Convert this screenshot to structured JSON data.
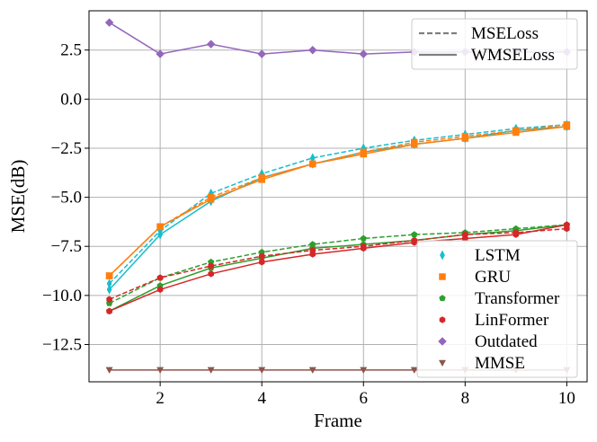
{
  "chart_data": {
    "type": "line",
    "title": "",
    "xlabel": "Frame",
    "ylabel": "MSE(dB)",
    "x": [
      1,
      2,
      3,
      4,
      5,
      6,
      7,
      8,
      9,
      10
    ],
    "xlim": [
      0.6,
      10.4
    ],
    "ylim": [
      -14.4,
      4.5
    ],
    "xticks": [
      2,
      4,
      6,
      8,
      10
    ],
    "xtick_labels": [
      "2",
      "4",
      "6",
      "8",
      "10"
    ],
    "yticks": [
      2.5,
      0.0,
      -2.5,
      -5.0,
      -7.5,
      -10.0,
      -12.5
    ],
    "ytick_labels": [
      "2.5",
      "0.0",
      "−2.5",
      "−5.0",
      "−7.5",
      "−10.0",
      "−12.5"
    ],
    "grid": true,
    "loss_legend": {
      "placement": "top-right",
      "entries": [
        {
          "label": "MSELoss",
          "style": "dashed",
          "color": "#7f7f7f"
        },
        {
          "label": "WMSELoss",
          "style": "solid",
          "color": "#7f7f7f"
        }
      ]
    },
    "model_legend": {
      "placement": "lower-right",
      "entries": [
        {
          "label": "LSTM",
          "marker": "thin_diamond",
          "color": "#17becf"
        },
        {
          "label": "GRU",
          "marker": "square",
          "color": "#ff7f0e"
        },
        {
          "label": "Transformer",
          "marker": "pentagon",
          "color": "#2ca02c"
        },
        {
          "label": "LinFormer",
          "marker": "hexagon",
          "color": "#d62728"
        },
        {
          "label": "Outdated",
          "marker": "diamond",
          "color": "#9467bd"
        },
        {
          "label": "MMSE",
          "marker": "triangle_down",
          "color": "#8c564b"
        }
      ]
    },
    "series": [
      {
        "name": "LSTM",
        "loss": "MSELoss",
        "color": "#17becf",
        "marker": "thin_diamond",
        "values": [
          -9.4,
          -6.7,
          -4.8,
          -3.8,
          -3.0,
          -2.5,
          -2.1,
          -1.8,
          -1.5,
          -1.3
        ]
      },
      {
        "name": "LSTM",
        "loss": "WMSELoss",
        "color": "#17becf",
        "marker": "thin_diamond",
        "values": [
          -9.7,
          -6.9,
          -5.2,
          -4.0,
          -3.3,
          -2.7,
          -2.3,
          -2.0,
          -1.6,
          -1.4
        ]
      },
      {
        "name": "GRU",
        "loss": "MSELoss",
        "color": "#ff7f0e",
        "marker": "square",
        "values": [
          -9.0,
          -6.5,
          -5.0,
          -4.0,
          -3.3,
          -2.7,
          -2.2,
          -1.9,
          -1.6,
          -1.3
        ]
      },
      {
        "name": "GRU",
        "loss": "WMSELoss",
        "color": "#ff7f0e",
        "marker": "square",
        "values": [
          -9.0,
          -6.5,
          -5.1,
          -4.1,
          -3.3,
          -2.8,
          -2.3,
          -2.0,
          -1.7,
          -1.4
        ]
      },
      {
        "name": "Transformer",
        "loss": "MSELoss",
        "color": "#2ca02c",
        "marker": "pentagon",
        "values": [
          -10.4,
          -9.1,
          -8.3,
          -7.8,
          -7.4,
          -7.1,
          -6.9,
          -6.8,
          -6.6,
          -6.4
        ]
      },
      {
        "name": "Transformer",
        "loss": "WMSELoss",
        "color": "#2ca02c",
        "marker": "pentagon",
        "values": [
          -10.8,
          -9.5,
          -8.6,
          -8.1,
          -7.6,
          -7.4,
          -7.2,
          -6.9,
          -6.7,
          -6.4
        ]
      },
      {
        "name": "LinFormer",
        "loss": "MSELoss",
        "color": "#d62728",
        "marker": "hexagon",
        "values": [
          -10.2,
          -9.1,
          -8.5,
          -8.0,
          -7.7,
          -7.5,
          -7.2,
          -6.9,
          -6.8,
          -6.6
        ]
      },
      {
        "name": "LinFormer",
        "loss": "WMSELoss",
        "color": "#d62728",
        "marker": "hexagon",
        "values": [
          -10.8,
          -9.7,
          -8.9,
          -8.3,
          -7.9,
          -7.6,
          -7.3,
          -7.1,
          -6.9,
          -6.4
        ]
      },
      {
        "name": "Outdated",
        "loss": "none",
        "color": "#9467bd",
        "marker": "diamond",
        "values": [
          3.9,
          2.3,
          2.8,
          2.3,
          2.5,
          2.3,
          2.4,
          2.4,
          2.4,
          2.4
        ]
      },
      {
        "name": "MMSE",
        "loss": "none",
        "color": "#8c564b",
        "marker": "triangle_down",
        "values": [
          -13.8,
          -13.8,
          -13.8,
          -13.8,
          -13.8,
          -13.8,
          -13.8,
          -13.8,
          -13.8,
          -13.8
        ]
      }
    ]
  }
}
